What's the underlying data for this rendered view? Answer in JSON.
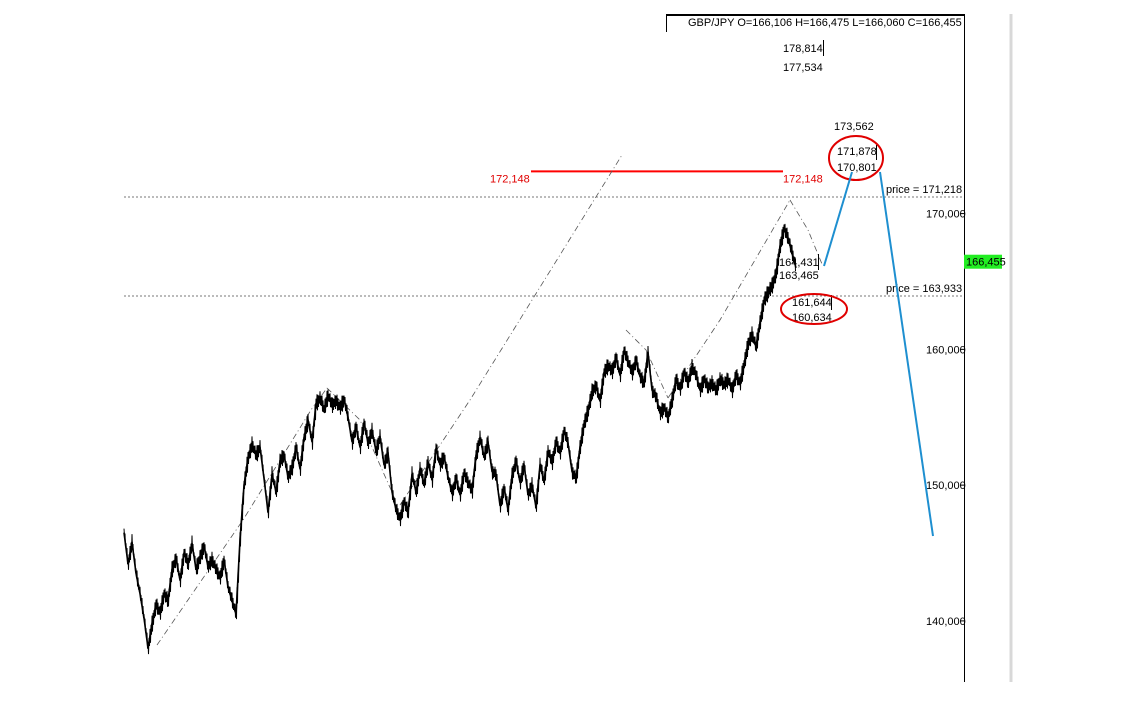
{
  "chart_data": {
    "type": "line",
    "symbol_header": "GBP/JPY O=166,106 H=166,475 L=166,060 C=166,455",
    "ylim": [
      135.5,
      184.7
    ],
    "y_ticks": [
      {
        "value": 140,
        "label": "140,000"
      },
      {
        "value": 150,
        "label": "150,000"
      },
      {
        "value": 160,
        "label": "160,000"
      },
      {
        "value": 170,
        "label": "170,000"
      }
    ],
    "current_price": {
      "value": 166.455,
      "label": "166,455",
      "color": "#22ee22"
    },
    "price_lines": [
      {
        "value": 171.218,
        "label": "price = 171,218"
      },
      {
        "value": 163.933,
        "label": "price = 163,933"
      }
    ],
    "resistance": {
      "value": 172.148,
      "label_left": "172,148",
      "label_right": "172,148",
      "color": "#ff0000"
    },
    "projection_levels": [
      {
        "label": "178,814"
      },
      {
        "label": "177,534"
      },
      {
        "label": "173,562"
      },
      {
        "label": "171,878"
      },
      {
        "label": "170,801"
      },
      {
        "label": "164,431"
      },
      {
        "label": "163,465"
      },
      {
        "label": "161,644"
      },
      {
        "label": "160,634"
      }
    ],
    "price_path": [
      [
        0,
        146.5
      ],
      [
        4,
        144.2
      ],
      [
        8,
        145.8
      ],
      [
        12,
        143.5
      ],
      [
        16,
        142.0
      ],
      [
        20,
        140.2
      ],
      [
        24,
        138.0
      ],
      [
        28,
        139.8
      ],
      [
        32,
        141.2
      ],
      [
        36,
        140.6
      ],
      [
        40,
        142.0
      ],
      [
        44,
        141.5
      ],
      [
        48,
        143.8
      ],
      [
        52,
        144.6
      ],
      [
        56,
        143.0
      ],
      [
        60,
        145.0
      ],
      [
        64,
        144.2
      ],
      [
        68,
        145.7
      ],
      [
        72,
        143.8
      ],
      [
        76,
        144.7
      ],
      [
        80,
        145.5
      ],
      [
        84,
        144.0
      ],
      [
        88,
        144.5
      ],
      [
        92,
        143.8
      ],
      [
        96,
        143.2
      ],
      [
        100,
        144.5
      ],
      [
        104,
        142.5
      ],
      [
        108,
        141.5
      ],
      [
        112,
        140.5
      ],
      [
        116,
        146.0
      ],
      [
        120,
        150.0
      ],
      [
        124,
        152.0
      ],
      [
        128,
        153.0
      ],
      [
        132,
        152.2
      ],
      [
        136,
        152.8
      ],
      [
        140,
        150.5
      ],
      [
        144,
        148.0
      ],
      [
        148,
        150.8
      ],
      [
        152,
        149.5
      ],
      [
        156,
        151.8
      ],
      [
        160,
        152.2
      ],
      [
        164,
        150.6
      ],
      [
        168,
        151.3
      ],
      [
        172,
        152.8
      ],
      [
        176,
        151.2
      ],
      [
        180,
        153.5
      ],
      [
        184,
        154.8
      ],
      [
        188,
        153.2
      ],
      [
        192,
        156.0
      ],
      [
        196,
        156.4
      ],
      [
        200,
        155.6
      ],
      [
        204,
        156.6
      ],
      [
        208,
        155.9
      ],
      [
        212,
        156.2
      ],
      [
        216,
        155.7
      ],
      [
        220,
        156.3
      ],
      [
        224,
        155.0
      ],
      [
        228,
        153.2
      ],
      [
        232,
        154.3
      ],
      [
        236,
        152.8
      ],
      [
        240,
        154.6
      ],
      [
        244,
        153.1
      ],
      [
        248,
        154.0
      ],
      [
        252,
        152.5
      ],
      [
        256,
        153.6
      ],
      [
        260,
        151.5
      ],
      [
        264,
        152.4
      ],
      [
        268,
        149.5
      ],
      [
        272,
        148.2
      ],
      [
        276,
        147.5
      ],
      [
        280,
        148.8
      ],
      [
        284,
        148.0
      ],
      [
        288,
        150.8
      ],
      [
        292,
        149.5
      ],
      [
        296,
        151.2
      ],
      [
        300,
        150.1
      ],
      [
        304,
        151.7
      ],
      [
        308,
        150.4
      ],
      [
        312,
        152.7
      ],
      [
        316,
        151.5
      ],
      [
        320,
        152.1
      ],
      [
        324,
        150.6
      ],
      [
        328,
        149.4
      ],
      [
        332,
        150.5
      ],
      [
        336,
        149.3
      ],
      [
        340,
        150.9
      ],
      [
        344,
        150.2
      ],
      [
        348,
        149.6
      ],
      [
        352,
        152.2
      ],
      [
        356,
        153.5
      ],
      [
        360,
        152.1
      ],
      [
        364,
        153.2
      ],
      [
        368,
        151.0
      ],
      [
        372,
        150.8
      ],
      [
        376,
        148.5
      ],
      [
        380,
        149.8
      ],
      [
        384,
        148.2
      ],
      [
        388,
        150.7
      ],
      [
        392,
        151.8
      ],
      [
        396,
        150.2
      ],
      [
        400,
        151.5
      ],
      [
        404,
        149.3
      ],
      [
        408,
        150.0
      ],
      [
        412,
        148.4
      ],
      [
        416,
        151.5
      ],
      [
        420,
        150.3
      ],
      [
        424,
        152.5
      ],
      [
        428,
        151.7
      ],
      [
        432,
        153.2
      ],
      [
        436,
        152.4
      ],
      [
        440,
        154.0
      ],
      [
        444,
        153.1
      ],
      [
        448,
        151.0
      ],
      [
        452,
        150.5
      ],
      [
        456,
        152.8
      ],
      [
        460,
        154.5
      ],
      [
        464,
        155.5
      ],
      [
        468,
        156.9
      ],
      [
        472,
        157.3
      ],
      [
        476,
        156.2
      ],
      [
        480,
        158.3
      ],
      [
        484,
        158.8
      ],
      [
        488,
        158.4
      ],
      [
        492,
        159.4
      ],
      [
        496,
        158.1
      ],
      [
        500,
        159.9
      ],
      [
        504,
        159.1
      ],
      [
        508,
        158.3
      ],
      [
        512,
        159.2
      ],
      [
        516,
        158.0
      ],
      [
        520,
        157.5
      ],
      [
        524,
        159.8
      ],
      [
        528,
        157.0
      ],
      [
        532,
        156.5
      ],
      [
        536,
        155.3
      ],
      [
        540,
        155.7
      ],
      [
        544,
        155.0
      ],
      [
        548,
        156.3
      ],
      [
        552,
        157.8
      ],
      [
        556,
        157.1
      ],
      [
        560,
        158.3
      ],
      [
        564,
        157.6
      ],
      [
        568,
        158.7
      ],
      [
        572,
        158.1
      ],
      [
        576,
        157.0
      ],
      [
        580,
        157.8
      ],
      [
        584,
        157.2
      ],
      [
        588,
        157.5
      ],
      [
        592,
        157.0
      ],
      [
        596,
        157.8
      ],
      [
        600,
        157.4
      ],
      [
        604,
        157.8
      ],
      [
        608,
        157.0
      ],
      [
        612,
        158.1
      ],
      [
        616,
        157.5
      ],
      [
        620,
        158.9
      ],
      [
        624,
        160.4
      ],
      [
        628,
        161.1
      ],
      [
        632,
        160.2
      ],
      [
        636,
        162.0
      ],
      [
        640,
        163.6
      ],
      [
        644,
        164.2
      ],
      [
        648,
        164.7
      ],
      [
        652,
        165.6
      ],
      [
        656,
        167.6
      ],
      [
        660,
        168.9
      ],
      [
        664,
        168.2
      ],
      [
        668,
        167.1
      ],
      [
        672,
        166.0
      ]
    ]
  },
  "annotations": {
    "red_circle_color": "#e00000",
    "forecast_color": "#1e8fd0",
    "gray_dash_color": "#555555"
  }
}
